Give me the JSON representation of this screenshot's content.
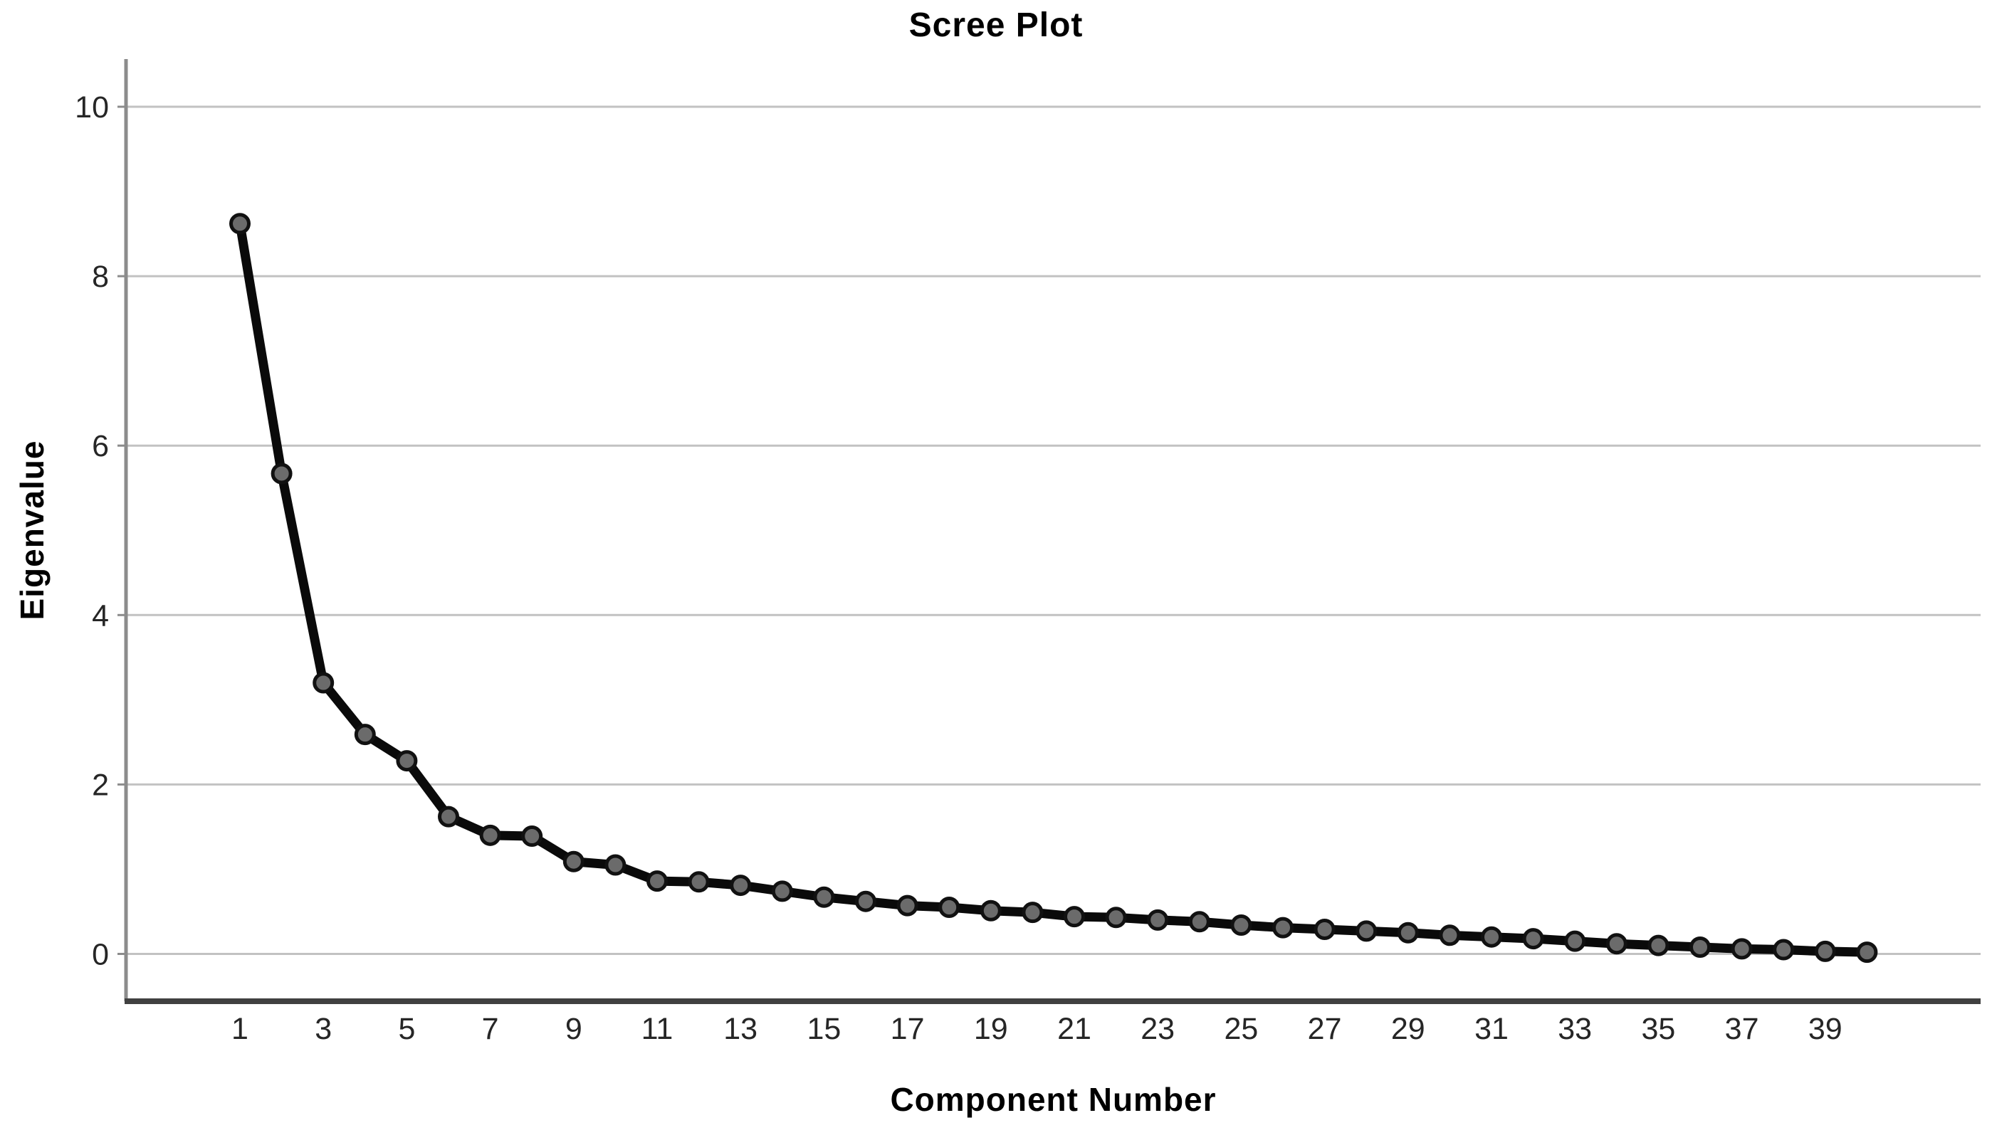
{
  "title": "Scree Plot",
  "chart_data": {
    "type": "line",
    "title": "Scree Plot",
    "xlabel": "Component Number",
    "ylabel": "Eigenvalue",
    "x": [
      1,
      2,
      3,
      4,
      5,
      6,
      7,
      8,
      9,
      10,
      11,
      12,
      13,
      14,
      15,
      16,
      17,
      18,
      19,
      20,
      21,
      22,
      23,
      24,
      25,
      26,
      27,
      28,
      29,
      30,
      31,
      32,
      33,
      34,
      35,
      36,
      37,
      38,
      39,
      40
    ],
    "values": [
      8.62,
      5.67,
      3.2,
      2.59,
      2.28,
      1.62,
      1.4,
      1.39,
      1.09,
      1.05,
      0.86,
      0.85,
      0.81,
      0.74,
      0.67,
      0.62,
      0.57,
      0.55,
      0.51,
      0.49,
      0.44,
      0.43,
      0.4,
      0.38,
      0.34,
      0.31,
      0.29,
      0.27,
      0.25,
      0.22,
      0.2,
      0.18,
      0.15,
      0.12,
      0.1,
      0.08,
      0.06,
      0.05,
      0.03,
      0.02
    ],
    "x_tick_labels": [
      "1",
      "3",
      "5",
      "7",
      "9",
      "11",
      "13",
      "15",
      "17",
      "19",
      "21",
      "23",
      "25",
      "27",
      "29",
      "31",
      "33",
      "35",
      "37",
      "39"
    ],
    "x_tick_positions": [
      1,
      3,
      5,
      7,
      9,
      11,
      13,
      15,
      17,
      19,
      21,
      23,
      25,
      27,
      29,
      31,
      33,
      35,
      37,
      39
    ],
    "y_ticks": [
      "0",
      "2",
      "4",
      "6",
      "8",
      "10"
    ],
    "y_tick_values": [
      0,
      2,
      4,
      6,
      8,
      10
    ],
    "ylim": [
      0,
      10
    ],
    "grid": "horizontal-only",
    "legend": "none",
    "marker": "circle"
  },
  "colors": {
    "background": "#ffffff",
    "line": "#0a0a0a",
    "marker_fill": "#6b6b6b",
    "marker_stroke": "#111111",
    "gridline": "#c2c2c2",
    "y_axis_line": "#8c8c8c",
    "x_axis_line": "#404040",
    "tick_label": "#262626",
    "title_text": "#000000"
  }
}
